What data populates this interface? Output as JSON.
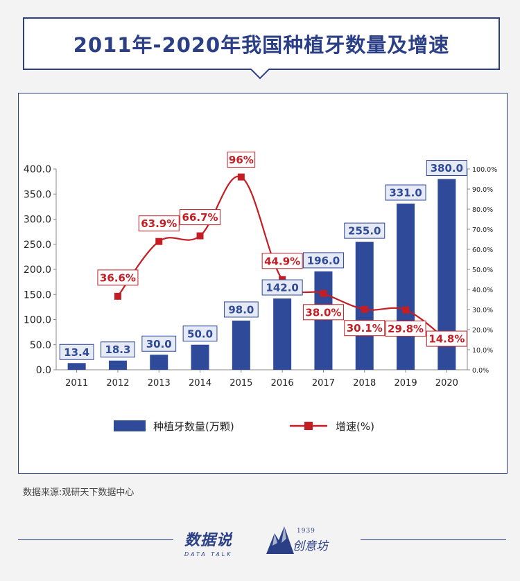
{
  "title": "2011年-2020年我国种植牙数量及增速",
  "source": "数据来源:观研天下数据中心",
  "logos": {
    "brand1_main": "数据说",
    "brand1_sub": "DATA TALK",
    "brand2_year": "1939",
    "brand2_name": "创意坊"
  },
  "colors": {
    "bar": "#2e4a99",
    "line": "#c41e24",
    "title": "#2b3f86"
  },
  "chart_data": {
    "type": "bar",
    "categories": [
      "2011",
      "2012",
      "2013",
      "2014",
      "2015",
      "2016",
      "2017",
      "2018",
      "2019",
      "2020"
    ],
    "series": [
      {
        "name": "种植牙数量(万颗)",
        "type": "bar",
        "axis": "left",
        "values": [
          13.4,
          18.3,
          30.0,
          50.0,
          98.0,
          142.0,
          196.0,
          255.0,
          331.0,
          380.0
        ],
        "labels": [
          "13.4",
          "18.3",
          "30.0",
          "50.0",
          "98.0",
          "142.0",
          "196.0",
          "255.0",
          "331.0",
          "380.0"
        ]
      },
      {
        "name": "增速(%)",
        "type": "line",
        "axis": "right",
        "values": [
          null,
          36.6,
          63.9,
          66.7,
          96.0,
          44.9,
          38.0,
          30.1,
          29.8,
          14.8
        ],
        "labels": [
          null,
          "36.6%",
          "63.9%",
          "66.7%",
          "96%",
          "44.9%",
          "38.0%",
          "30.1%",
          "29.8%",
          "14.8%"
        ]
      }
    ],
    "ylim_left": [
      0,
      400
    ],
    "yticks_left": [
      "0.0",
      "50.0",
      "100.0",
      "150.0",
      "200.0",
      "250.0",
      "300.0",
      "350.0",
      "400.0"
    ],
    "ylim_right": [
      0,
      100
    ],
    "yticks_right": [
      "0.0%",
      "10.0%",
      "20.0%",
      "30.0%",
      "40.0%",
      "50.0%",
      "60.0%",
      "70.0%",
      "80.0%",
      "90.0%",
      "100.0%"
    ],
    "legend_position": "bottom",
    "grid": false
  }
}
